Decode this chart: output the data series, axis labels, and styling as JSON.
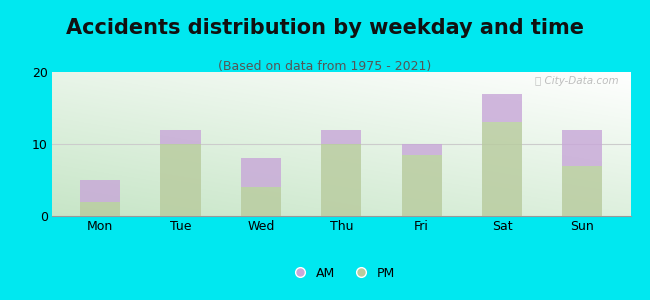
{
  "title": "Accidents distribution by weekday and time",
  "subtitle": "(Based on data from 1975 - 2021)",
  "categories": [
    "Mon",
    "Tue",
    "Wed",
    "Thu",
    "Fri",
    "Sat",
    "Sun"
  ],
  "pm_values": [
    2.0,
    10.0,
    4.0,
    10.0,
    8.5,
    13.0,
    7.0
  ],
  "am_values": [
    3.0,
    2.0,
    4.0,
    2.0,
    1.5,
    4.0,
    5.0
  ],
  "am_color": "#c8a8d8",
  "pm_color": "#b8cb9e",
  "background_color": "#00e8f0",
  "ylim": [
    0,
    20
  ],
  "yticks": [
    0,
    10,
    20
  ],
  "grid_color": "#cccccc",
  "title_fontsize": 15,
  "subtitle_fontsize": 9,
  "tick_fontsize": 9,
  "legend_fontsize": 9,
  "bar_width": 0.5,
  "watermark_text": "ⓘ City-Data.com"
}
